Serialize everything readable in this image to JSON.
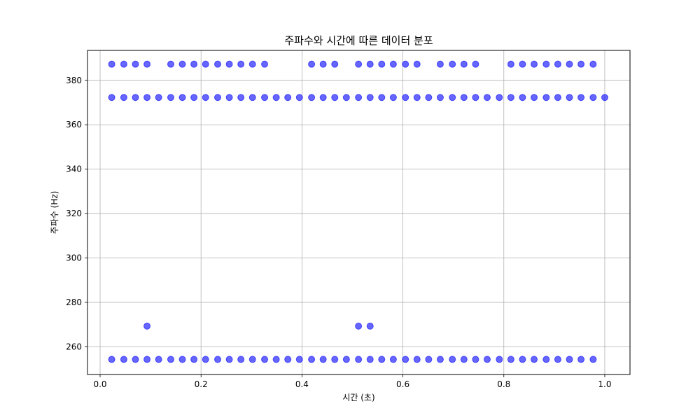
{
  "chart_data": {
    "type": "scatter",
    "title": "주파수와 시간에 따른 데이터 분포",
    "xlabel": "시간 (초)",
    "ylabel": "주파수 (Hz)",
    "xlim": [
      -0.025,
      1.05
    ],
    "ylim": [
      247.5,
      393.5
    ],
    "xticks": [
      0.0,
      0.2,
      0.4,
      0.6,
      0.8,
      1.0
    ],
    "xtick_labels": [
      "0.0",
      "0.2",
      "0.4",
      "0.6",
      "0.8",
      "1.0"
    ],
    "yticks": [
      260,
      280,
      300,
      320,
      340,
      360,
      380
    ],
    "ytick_labels": [
      "260",
      "280",
      "300",
      "320",
      "340",
      "360",
      "380"
    ],
    "grid": true,
    "marker_color": "#0000ff",
    "marker_alpha": 0.6,
    "series": [
      {
        "points": [
          [
            0.023,
            387.3
          ],
          [
            0.047,
            387.3
          ],
          [
            0.07,
            387.3
          ],
          [
            0.093,
            387.3
          ],
          [
            0.14,
            387.3
          ],
          [
            0.163,
            387.3
          ],
          [
            0.186,
            387.3
          ],
          [
            0.209,
            387.3
          ],
          [
            0.233,
            387.3
          ],
          [
            0.256,
            387.3
          ],
          [
            0.279,
            387.3
          ],
          [
            0.302,
            387.3
          ],
          [
            0.326,
            387.3
          ],
          [
            0.419,
            387.3
          ],
          [
            0.442,
            387.3
          ],
          [
            0.465,
            387.3
          ],
          [
            0.512,
            387.3
          ],
          [
            0.535,
            387.3
          ],
          [
            0.558,
            387.3
          ],
          [
            0.581,
            387.3
          ],
          [
            0.605,
            387.3
          ],
          [
            0.628,
            387.3
          ],
          [
            0.674,
            387.3
          ],
          [
            0.698,
            387.3
          ],
          [
            0.721,
            387.3
          ],
          [
            0.744,
            387.3
          ],
          [
            0.814,
            387.3
          ],
          [
            0.837,
            387.3
          ],
          [
            0.86,
            387.3
          ],
          [
            0.884,
            387.3
          ],
          [
            0.907,
            387.3
          ],
          [
            0.93,
            387.3
          ],
          [
            0.953,
            387.3
          ],
          [
            0.977,
            387.3
          ],
          [
            0.023,
            372.3
          ],
          [
            0.047,
            372.3
          ],
          [
            0.07,
            372.3
          ],
          [
            0.093,
            372.3
          ],
          [
            0.116,
            372.3
          ],
          [
            0.14,
            372.3
          ],
          [
            0.163,
            372.3
          ],
          [
            0.186,
            372.3
          ],
          [
            0.209,
            372.3
          ],
          [
            0.233,
            372.3
          ],
          [
            0.256,
            372.3
          ],
          [
            0.279,
            372.3
          ],
          [
            0.302,
            372.3
          ],
          [
            0.326,
            372.3
          ],
          [
            0.349,
            372.3
          ],
          [
            0.372,
            372.3
          ],
          [
            0.395,
            372.3
          ],
          [
            0.419,
            372.3
          ],
          [
            0.442,
            372.3
          ],
          [
            0.465,
            372.3
          ],
          [
            0.488,
            372.3
          ],
          [
            0.512,
            372.3
          ],
          [
            0.535,
            372.3
          ],
          [
            0.558,
            372.3
          ],
          [
            0.581,
            372.3
          ],
          [
            0.605,
            372.3
          ],
          [
            0.628,
            372.3
          ],
          [
            0.651,
            372.3
          ],
          [
            0.674,
            372.3
          ],
          [
            0.698,
            372.3
          ],
          [
            0.721,
            372.3
          ],
          [
            0.744,
            372.3
          ],
          [
            0.767,
            372.3
          ],
          [
            0.791,
            372.3
          ],
          [
            0.814,
            372.3
          ],
          [
            0.837,
            372.3
          ],
          [
            0.86,
            372.3
          ],
          [
            0.884,
            372.3
          ],
          [
            0.907,
            372.3
          ],
          [
            0.93,
            372.3
          ],
          [
            0.953,
            372.3
          ],
          [
            0.977,
            372.3
          ],
          [
            1.0,
            372.3
          ],
          [
            0.093,
            269.3
          ],
          [
            0.512,
            269.3
          ],
          [
            0.535,
            269.3
          ],
          [
            0.023,
            254.3
          ],
          [
            0.047,
            254.3
          ],
          [
            0.07,
            254.3
          ],
          [
            0.093,
            254.3
          ],
          [
            0.116,
            254.3
          ],
          [
            0.14,
            254.3
          ],
          [
            0.163,
            254.3
          ],
          [
            0.186,
            254.3
          ],
          [
            0.209,
            254.3
          ],
          [
            0.233,
            254.3
          ],
          [
            0.256,
            254.3
          ],
          [
            0.279,
            254.3
          ],
          [
            0.302,
            254.3
          ],
          [
            0.326,
            254.3
          ],
          [
            0.349,
            254.3
          ],
          [
            0.372,
            254.3
          ],
          [
            0.395,
            254.3
          ],
          [
            0.419,
            254.3
          ],
          [
            0.442,
            254.3
          ],
          [
            0.465,
            254.3
          ],
          [
            0.488,
            254.3
          ],
          [
            0.512,
            254.3
          ],
          [
            0.535,
            254.3
          ],
          [
            0.558,
            254.3
          ],
          [
            0.581,
            254.3
          ],
          [
            0.605,
            254.3
          ],
          [
            0.628,
            254.3
          ],
          [
            0.651,
            254.3
          ],
          [
            0.674,
            254.3
          ],
          [
            0.698,
            254.3
          ],
          [
            0.721,
            254.3
          ],
          [
            0.744,
            254.3
          ],
          [
            0.767,
            254.3
          ],
          [
            0.791,
            254.3
          ],
          [
            0.814,
            254.3
          ],
          [
            0.837,
            254.3
          ],
          [
            0.86,
            254.3
          ],
          [
            0.884,
            254.3
          ],
          [
            0.907,
            254.3
          ],
          [
            0.93,
            254.3
          ],
          [
            0.953,
            254.3
          ],
          [
            0.977,
            254.3
          ]
        ]
      }
    ]
  }
}
